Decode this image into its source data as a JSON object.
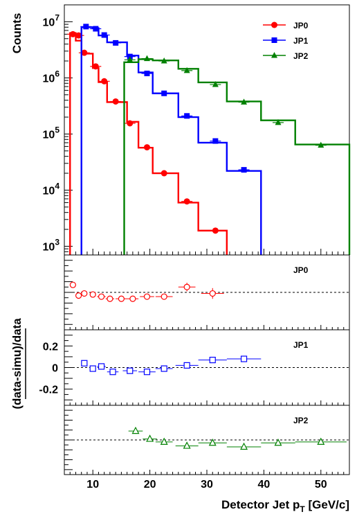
{
  "chart_data": [
    {
      "type": "line",
      "ylabel": "Counts",
      "yscale": "log",
      "xlim": [
        5,
        55
      ],
      "ylim": [
        700,
        20000000
      ],
      "x_ticks": [
        "10",
        "20",
        "30",
        "40",
        "50"
      ],
      "y_ticks": [
        "10^3",
        "10^4",
        "10^5",
        "10^6",
        "10^7"
      ],
      "legend_position": "top-right",
      "series": [
        {
          "name": "JP0",
          "color": "#ff0000",
          "marker": "circle",
          "edges": [
            6,
            7,
            8,
            9,
            10,
            11,
            12.5,
            14,
            16,
            18,
            20.5,
            23.5,
            25,
            28.5,
            33.5
          ],
          "data_x": [
            6.5,
            7.5,
            8.5,
            10.5,
            12,
            14,
            16.5,
            19.5,
            22.5,
            26.5,
            31.5
          ],
          "data_y": [
            6000000,
            5700000,
            2800000,
            1600000,
            870000,
            380000,
            155000,
            58000,
            20000,
            6300,
            1900
          ],
          "mc_y": [
            6300000,
            4600000,
            2700000,
            1500000,
            840000,
            370000,
            165000,
            57000,
            20000,
            6000,
            1900
          ]
        },
        {
          "name": "JP1",
          "color": "#0000ff",
          "marker": "square",
          "edges": [
            8,
            9,
            10,
            11,
            12.5,
            14,
            16,
            18,
            20.5,
            23.5,
            25,
            28.5,
            33.5,
            39.5
          ],
          "data_x": [
            8.8,
            10.5,
            12,
            14,
            16.5,
            19.5,
            22.5,
            26.5,
            31.5,
            36.5
          ],
          "data_y": [
            8200000,
            7500000,
            5800000,
            4200000,
            2400000,
            1200000,
            530000,
            210000,
            75000,
            23000
          ],
          "mc_y": [
            8000000,
            7700000,
            5700000,
            4300000,
            2500000,
            1250000,
            530000,
            200000,
            70000,
            22000
          ]
        },
        {
          "name": "JP2",
          "color": "#008000",
          "marker": "triangle",
          "edges": [
            15.5,
            18,
            20.5,
            23.5,
            25,
            28.5,
            33.5,
            39.5,
            45.5,
            55
          ],
          "data_x": [
            16.5,
            19.5,
            22.5,
            26.5,
            31.5,
            36.5,
            42.5,
            50
          ],
          "data_y": [
            2100000,
            2200000,
            2000000,
            1350000,
            760000,
            370000,
            160000,
            63000
          ],
          "mc_y": [
            1900000,
            2150000,
            2050000,
            1450000,
            830000,
            380000,
            175000,
            65000
          ]
        }
      ]
    },
    {
      "type": "scatter",
      "label": "JP0",
      "ylabel": "",
      "ylim": [
        -0.35,
        0.35
      ],
      "y_ticks": [],
      "points": [
        {
          "x": 6.5,
          "xerr": 0.5,
          "y": 0.07
        },
        {
          "x": 7.5,
          "xerr": 0.5,
          "y": -0.03
        },
        {
          "x": 8.5,
          "xerr": 0.5,
          "y": -0.01
        },
        {
          "x": 10,
          "xerr": 0.5,
          "y": -0.02
        },
        {
          "x": 11.5,
          "xerr": 0.75,
          "y": -0.04
        },
        {
          "x": 13,
          "xerr": 0.75,
          "y": -0.06
        },
        {
          "x": 15,
          "xerr": 1,
          "y": -0.06
        },
        {
          "x": 17,
          "xerr": 1,
          "y": -0.06
        },
        {
          "x": 19.5,
          "xerr": 1.25,
          "y": -0.04
        },
        {
          "x": 22.5,
          "xerr": 1.5,
          "y": -0.04
        },
        {
          "x": 26.5,
          "xerr": 1.5,
          "y": 0.05,
          "yerr": 0.04
        },
        {
          "x": 31,
          "xerr": 2,
          "y": -0.01,
          "yerr": 0.05
        }
      ]
    },
    {
      "type": "scatter",
      "label": "JP1",
      "ylabel": "(data-simu)/data",
      "ylim": [
        -0.35,
        0.35
      ],
      "y_ticks": [
        "-0.2",
        "0",
        "0.2"
      ],
      "points": [
        {
          "x": 8.5,
          "xerr": 0.5,
          "y": 0.04
        },
        {
          "x": 10,
          "xerr": 0.5,
          "y": -0.01
        },
        {
          "x": 11.5,
          "xerr": 0.75,
          "y": 0.01
        },
        {
          "x": 13.5,
          "xerr": 1,
          "y": -0.04
        },
        {
          "x": 16.5,
          "xerr": 1.25,
          "y": -0.03
        },
        {
          "x": 19.5,
          "xerr": 1.5,
          "y": -0.04
        },
        {
          "x": 22.5,
          "xerr": 1.5,
          "y": -0.01
        },
        {
          "x": 26.5,
          "xerr": 2,
          "y": 0.02
        },
        {
          "x": 31,
          "xerr": 2.5,
          "y": 0.07
        },
        {
          "x": 36.5,
          "xerr": 3,
          "y": 0.08
        }
      ]
    },
    {
      "type": "scatter",
      "label": "JP2",
      "ylabel": "",
      "ylim": [
        -0.35,
        0.35
      ],
      "y_ticks": [],
      "points": [
        {
          "x": 17.5,
          "xerr": 1.25,
          "y": 0.09
        },
        {
          "x": 20,
          "xerr": 1.25,
          "y": 0.01
        },
        {
          "x": 22.5,
          "xerr": 1.5,
          "y": -0.02
        },
        {
          "x": 26.5,
          "xerr": 2,
          "y": -0.06
        },
        {
          "x": 31,
          "xerr": 2.5,
          "y": -0.03
        },
        {
          "x": 36.5,
          "xerr": 3,
          "y": -0.07
        },
        {
          "x": 42.5,
          "xerr": 3,
          "y": -0.03
        },
        {
          "x": 50,
          "xerr": 4.5,
          "y": -0.02
        }
      ]
    }
  ],
  "xlabel_main": "Detector Jet p",
  "xlabel_sub": "T",
  "xlabel_unit": " [GeV/c]"
}
